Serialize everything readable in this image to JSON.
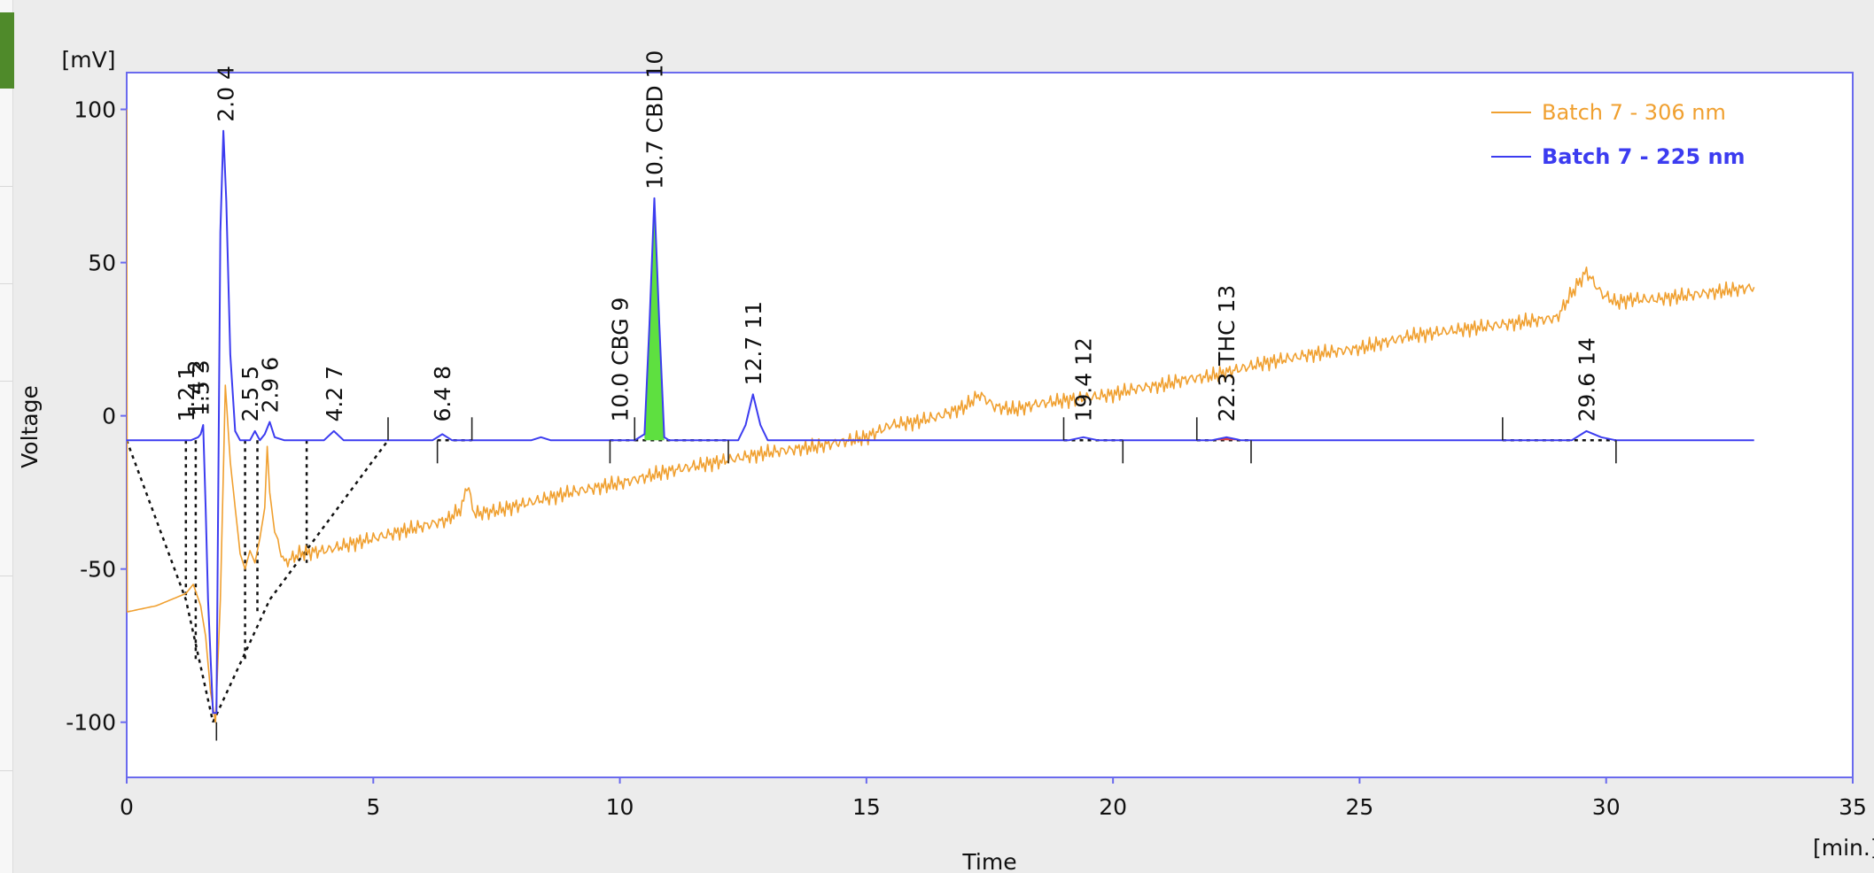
{
  "chart_data": {
    "type": "line",
    "title": "",
    "xlabel": "Time",
    "ylabel": "Voltage",
    "xunit": "[min.]",
    "yunit": "[mV]",
    "xlim": [
      0,
      35
    ],
    "ylim": [
      -118,
      112
    ],
    "xticks": [
      0,
      5,
      10,
      15,
      20,
      25,
      30,
      35
    ],
    "yticks": [
      -100,
      -50,
      0,
      50,
      100
    ],
    "grid": false,
    "legend": {
      "position": "top-right",
      "entries": [
        {
          "label": "Batch 7 - 306 nm",
          "color": "#f0a030",
          "bold": false
        },
        {
          "label": "Batch 7 - 225 nm",
          "color": "#3c3cf0",
          "bold": true
        }
      ]
    },
    "series": [
      {
        "name": "Batch 7 - 306 nm",
        "color": "#f0a030",
        "points": [
          [
            0,
            100
          ],
          [
            0.01,
            -64
          ],
          [
            0.3,
            -63
          ],
          [
            0.6,
            -62
          ],
          [
            0.9,
            -60
          ],
          [
            1.2,
            -58
          ],
          [
            1.35,
            -55
          ],
          [
            1.5,
            -62
          ],
          [
            1.6,
            -72
          ],
          [
            1.7,
            -90
          ],
          [
            1.8,
            -100
          ],
          [
            1.9,
            -60
          ],
          [
            2.0,
            10
          ],
          [
            2.1,
            -15
          ],
          [
            2.2,
            -30
          ],
          [
            2.3,
            -45
          ],
          [
            2.4,
            -50
          ],
          [
            2.5,
            -44
          ],
          [
            2.6,
            -48
          ],
          [
            2.7,
            -40
          ],
          [
            2.8,
            -30
          ],
          [
            2.85,
            -10
          ],
          [
            2.9,
            -25
          ],
          [
            3.0,
            -38
          ],
          [
            3.2,
            -48
          ],
          [
            3.5,
            -45
          ],
          [
            4.0,
            -44
          ],
          [
            4.5,
            -42
          ],
          [
            5.0,
            -40
          ],
          [
            5.5,
            -38
          ],
          [
            6.0,
            -36
          ],
          [
            6.5,
            -34
          ],
          [
            6.8,
            -30
          ],
          [
            6.9,
            -22
          ],
          [
            7.05,
            -32
          ],
          [
            7.5,
            -31
          ],
          [
            8.0,
            -29
          ],
          [
            9.0,
            -25
          ],
          [
            10.0,
            -22
          ],
          [
            11.0,
            -18
          ],
          [
            12.0,
            -15
          ],
          [
            13.0,
            -12
          ],
          [
            14.0,
            -10
          ],
          [
            15.0,
            -7
          ],
          [
            15.5,
            -3
          ],
          [
            16.0,
            -2
          ],
          [
            16.5,
            0
          ],
          [
            17.0,
            3
          ],
          [
            17.3,
            7
          ],
          [
            17.6,
            3
          ],
          [
            18.0,
            2
          ],
          [
            18.5,
            4
          ],
          [
            19.0,
            5
          ],
          [
            19.5,
            6
          ],
          [
            20.0,
            7
          ],
          [
            20.5,
            9
          ],
          [
            21.0,
            10
          ],
          [
            21.5,
            12
          ],
          [
            22.0,
            13
          ],
          [
            22.5,
            15
          ],
          [
            23.0,
            17
          ],
          [
            24.0,
            20
          ],
          [
            25.0,
            22
          ],
          [
            26.0,
            26
          ],
          [
            27.0,
            28
          ],
          [
            28.0,
            30
          ],
          [
            29.0,
            32
          ],
          [
            29.3,
            40
          ],
          [
            29.6,
            47
          ],
          [
            29.9,
            40
          ],
          [
            30.2,
            37
          ],
          [
            30.5,
            38
          ],
          [
            31.0,
            38
          ],
          [
            32.0,
            40
          ],
          [
            33.0,
            42
          ]
        ]
      },
      {
        "name": "Batch 7 - 225 nm",
        "color": "#3c3cf0",
        "points": [
          [
            0,
            -8
          ],
          [
            1.3,
            -8
          ],
          [
            1.45,
            -7
          ],
          [
            1.5,
            -6
          ],
          [
            1.55,
            -3
          ],
          [
            1.6,
            -30
          ],
          [
            1.65,
            -60
          ],
          [
            1.75,
            -97
          ],
          [
            1.82,
            -97
          ],
          [
            1.9,
            60
          ],
          [
            1.96,
            93
          ],
          [
            2.02,
            70
          ],
          [
            2.1,
            20
          ],
          [
            2.2,
            -5
          ],
          [
            2.3,
            -8
          ],
          [
            2.5,
            -8
          ],
          [
            2.6,
            -5
          ],
          [
            2.7,
            -8
          ],
          [
            2.8,
            -6
          ],
          [
            2.9,
            -2
          ],
          [
            3.0,
            -7
          ],
          [
            3.2,
            -8
          ],
          [
            4.0,
            -8
          ],
          [
            4.2,
            -5
          ],
          [
            4.4,
            -8
          ],
          [
            6.2,
            -8
          ],
          [
            6.4,
            -6
          ],
          [
            6.6,
            -8
          ],
          [
            8.2,
            -8
          ],
          [
            8.4,
            -7
          ],
          [
            8.6,
            -8
          ],
          [
            10.0,
            -8
          ],
          [
            10.3,
            -8
          ],
          [
            10.5,
            -6
          ],
          [
            10.6,
            30
          ],
          [
            10.7,
            71
          ],
          [
            10.8,
            30
          ],
          [
            10.9,
            -7
          ],
          [
            11.0,
            -8
          ],
          [
            12.4,
            -8
          ],
          [
            12.55,
            -3
          ],
          [
            12.7,
            7
          ],
          [
            12.85,
            -3
          ],
          [
            13.0,
            -8
          ],
          [
            19.1,
            -8
          ],
          [
            19.4,
            -7
          ],
          [
            19.7,
            -8
          ],
          [
            22.0,
            -8
          ],
          [
            22.3,
            -7
          ],
          [
            22.6,
            -8
          ],
          [
            29.3,
            -8
          ],
          [
            29.6,
            -5
          ],
          [
            29.9,
            -7
          ],
          [
            30.2,
            -8
          ],
          [
            33.0,
            -8
          ]
        ]
      }
    ],
    "peaks": [
      {
        "label": "1.2  1",
        "x": 1.2
      },
      {
        "label": "1.4  2",
        "x": 1.4
      },
      {
        "label": "1.5  3",
        "x": 1.5
      },
      {
        "label": "2.0  4",
        "x": 2.0
      },
      {
        "label": "2.5  5",
        "x": 2.5
      },
      {
        "label": "2.9  6",
        "x": 2.9
      },
      {
        "label": "4.2  7",
        "x": 4.2
      },
      {
        "label": "6.4  8",
        "x": 6.4
      },
      {
        "label": "10.0 CBG  9",
        "x": 10.0
      },
      {
        "label": "10.7 CBD  10",
        "x": 10.7
      },
      {
        "label": "12.7  11",
        "x": 12.7
      },
      {
        "label": "19.4  12",
        "x": 19.4
      },
      {
        "label": "22.3 THC  13",
        "x": 22.3
      },
      {
        "label": "29.6  14",
        "x": 29.6
      }
    ],
    "baselines": [
      [
        [
          0,
          -8
        ],
        [
          1.2,
          -60
        ],
        [
          1.75,
          -100
        ]
      ],
      [
        [
          1.75,
          -100
        ],
        [
          2.9,
          -60
        ],
        [
          5.3,
          -8
        ]
      ],
      [
        [
          1.2,
          -8
        ],
        [
          1.2,
          -60
        ]
      ],
      [
        [
          1.4,
          -8
        ],
        [
          1.4,
          -80
        ]
      ],
      [
        [
          2.4,
          -8
        ],
        [
          2.4,
          -80
        ]
      ],
      [
        [
          2.65,
          -8
        ],
        [
          2.65,
          -65
        ]
      ],
      [
        [
          3.65,
          -8
        ],
        [
          3.65,
          -48
        ]
      ],
      [
        [
          6.3,
          -8
        ],
        [
          7.0,
          -8
        ]
      ],
      [
        [
          9.8,
          -8
        ],
        [
          10.3,
          -8
        ]
      ],
      [
        [
          10.3,
          -8
        ],
        [
          12.2,
          -8
        ]
      ],
      [
        [
          19.0,
          -8
        ],
        [
          20.2,
          -8
        ]
      ],
      [
        [
          21.7,
          -8
        ],
        [
          22.8,
          -8
        ]
      ],
      [
        [
          27.9,
          -8
        ],
        [
          30.2,
          -8
        ]
      ]
    ],
    "integration_ticks": [
      5.3,
      6.3,
      7.0,
      9.8,
      10.3,
      12.2,
      19.0,
      20.2,
      21.7,
      22.8,
      27.9,
      30.2
    ]
  }
}
